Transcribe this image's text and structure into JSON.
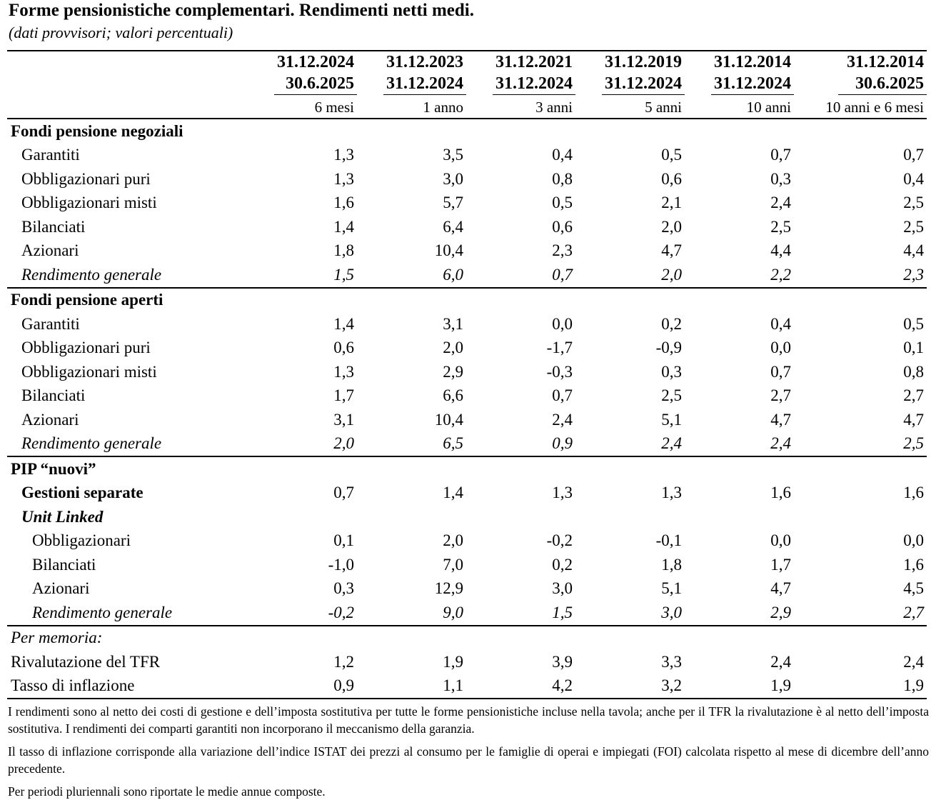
{
  "title": "Forme pensionistiche complementari. Rendimenti netti medi.",
  "subtitle": "(dati provvisori; valori percentuali)",
  "columns": [
    {
      "from": "31.12.2024",
      "to": "30.6.2025",
      "span": "6 mesi"
    },
    {
      "from": "31.12.2023",
      "to": "31.12.2024",
      "span": "1 anno"
    },
    {
      "from": "31.12.2021",
      "to": "31.12.2024",
      "span": "3 anni"
    },
    {
      "from": "31.12.2019",
      "to": "31.12.2024",
      "span": "5 anni"
    },
    {
      "from": "31.12.2014",
      "to": "31.12.2024",
      "span": "10 anni"
    },
    {
      "from": "31.12.2014",
      "to": "30.6.2025",
      "span": "10 anni e 6 mesi"
    }
  ],
  "sections": {
    "negoziali": {
      "title": "Fondi pensione negoziali",
      "rows": [
        {
          "label": "Garantiti",
          "values": [
            "1,3",
            "3,5",
            "0,4",
            "0,5",
            "0,7",
            "0,7"
          ]
        },
        {
          "label": "Obbligazionari puri",
          "values": [
            "1,3",
            "3,0",
            "0,8",
            "0,6",
            "0,3",
            "0,4"
          ]
        },
        {
          "label": "Obbligazionari misti",
          "values": [
            "1,6",
            "5,7",
            "0,5",
            "2,1",
            "2,4",
            "2,5"
          ]
        },
        {
          "label": "Bilanciati",
          "values": [
            "1,4",
            "6,4",
            "0,6",
            "2,0",
            "2,5",
            "2,5"
          ]
        },
        {
          "label": "Azionari",
          "values": [
            "1,8",
            "10,4",
            "2,3",
            "4,7",
            "4,4",
            "4,4"
          ]
        },
        {
          "label": "Rendimento generale",
          "values": [
            "1,5",
            "6,0",
            "0,7",
            "2,0",
            "2,2",
            "2,3"
          ]
        }
      ]
    },
    "aperti": {
      "title": "Fondi pensione aperti",
      "rows": [
        {
          "label": "Garantiti",
          "values": [
            "1,4",
            "3,1",
            "0,0",
            "0,2",
            "0,4",
            "0,5"
          ]
        },
        {
          "label": "Obbligazionari puri",
          "values": [
            "0,6",
            "2,0",
            "-1,7",
            "-0,9",
            "0,0",
            "0,1"
          ]
        },
        {
          "label": "Obbligazionari misti",
          "values": [
            "1,3",
            "2,9",
            "-0,3",
            "0,3",
            "0,7",
            "0,8"
          ]
        },
        {
          "label": "Bilanciati",
          "values": [
            "1,7",
            "6,6",
            "0,7",
            "2,5",
            "2,7",
            "2,7"
          ]
        },
        {
          "label": "Azionari",
          "values": [
            "3,1",
            "10,4",
            "2,4",
            "5,1",
            "4,7",
            "4,7"
          ]
        },
        {
          "label": "Rendimento generale",
          "values": [
            "2,0",
            "6,5",
            "0,9",
            "2,4",
            "2,4",
            "2,5"
          ]
        }
      ]
    },
    "pip": {
      "title": "PIP “nuovi”",
      "gestioni": {
        "label": "Gestioni separate",
        "values": [
          "0,7",
          "1,4",
          "1,3",
          "1,3",
          "1,6",
          "1,6"
        ]
      },
      "unit_linked": "Unit Linked",
      "rows": [
        {
          "label": "Obbligazionari",
          "values": [
            "0,1",
            "2,0",
            "-0,2",
            "-0,1",
            "0,0",
            "0,0"
          ]
        },
        {
          "label": "Bilanciati",
          "values": [
            "-1,0",
            "7,0",
            "0,2",
            "1,8",
            "1,7",
            "1,6"
          ]
        },
        {
          "label": "Azionari",
          "values": [
            "0,3",
            "12,9",
            "3,0",
            "5,1",
            "4,7",
            "4,5"
          ]
        },
        {
          "label": "Rendimento generale",
          "values": [
            "-0,2",
            "9,0",
            "1,5",
            "3,0",
            "2,9",
            "2,7"
          ]
        }
      ]
    },
    "memoria": {
      "title": "Per memoria:",
      "rows": [
        {
          "label": "Rivalutazione del TFR",
          "values": [
            "1,2",
            "1,9",
            "3,9",
            "3,3",
            "2,4",
            "2,4"
          ]
        },
        {
          "label": "Tasso di inflazione",
          "values": [
            "0,9",
            "1,1",
            "4,2",
            "3,2",
            "1,9",
            "1,9"
          ]
        }
      ]
    }
  },
  "notes": [
    "I rendimenti sono al netto dei costi di gestione e dell’imposta sostitutiva per tutte le forme pensionistiche incluse nella tavola; anche per il TFR la rivalutazione è al netto dell’imposta sostitutiva. I rendimenti dei comparti garantiti non incorporano il meccanismo della garanzia.",
    "Il tasso di inflazione corrisponde alla variazione dell’indice ISTAT dei prezzi al consumo per le famiglie di operai e impiegati (FOI) calcolata rispetto al mese di dicembre dell’anno precedente.",
    "Per periodi pluriennali sono riportate le medie annue composte."
  ]
}
